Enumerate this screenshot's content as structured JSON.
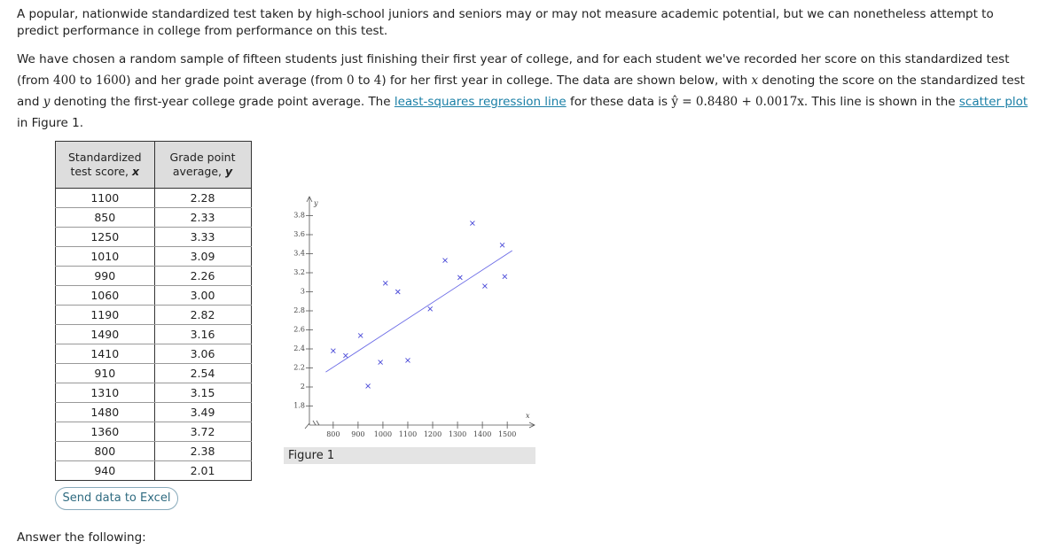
{
  "intro": "A popular, nationwide standardized test taken by high-school juniors and seniors may or may not measure academic potential, but we can nonetheless attempt to predict performance in college from performance on this test.",
  "paragraph": [
    {
      "kind": "text",
      "text": "We have chosen a random sample of fifteen students just finishing their first year of college, and for each student we've recorded her score on this standardized test (from "
    },
    {
      "kind": "math",
      "text": "400"
    },
    {
      "kind": "text",
      "text": " to "
    },
    {
      "kind": "math",
      "text": "1600"
    },
    {
      "kind": "text",
      "text": ") and her grade point average (from "
    },
    {
      "kind": "math",
      "text": "0"
    },
    {
      "kind": "text",
      "text": " to "
    },
    {
      "kind": "math",
      "text": "4"
    },
    {
      "kind": "text",
      "text": ") for her first year in college. The data are shown below, with "
    },
    {
      "kind": "var",
      "text": "x"
    },
    {
      "kind": "text",
      "text": " denoting the score on the standardized test and "
    },
    {
      "kind": "var",
      "text": "y"
    },
    {
      "kind": "text",
      "text": " denoting the first-year college grade point average. The "
    },
    {
      "kind": "link",
      "text": "least-squares regression line"
    },
    {
      "kind": "text",
      "text": " for these data is "
    },
    {
      "kind": "math",
      "text": "ŷ = 0.8480 + 0.0017x"
    },
    {
      "kind": "text",
      "text": ". This line is shown in the "
    },
    {
      "kind": "link",
      "text": "scatter plot"
    },
    {
      "kind": "text",
      "text": " in Figure 1."
    }
  ],
  "table": {
    "headers": [
      {
        "text": "Standardized test score,",
        "var": "x"
      },
      {
        "text": "Grade point average,",
        "var": "y"
      }
    ],
    "rows": [
      [
        "1100",
        "2.28"
      ],
      [
        "850",
        "2.33"
      ],
      [
        "1250",
        "3.33"
      ],
      [
        "1010",
        "3.09"
      ],
      [
        "990",
        "2.26"
      ],
      [
        "1060",
        "3.00"
      ],
      [
        "1190",
        "2.82"
      ],
      [
        "1490",
        "3.16"
      ],
      [
        "1410",
        "3.06"
      ],
      [
        "910",
        "2.54"
      ],
      [
        "1310",
        "3.15"
      ],
      [
        "1480",
        "3.49"
      ],
      [
        "1360",
        "3.72"
      ],
      [
        "800",
        "2.38"
      ],
      [
        "940",
        "2.01"
      ]
    ]
  },
  "button": "Send data to Excel",
  "figure": {
    "caption": "Figure 1",
    "chart_data": {
      "type": "scatter",
      "x_label": "x",
      "y_label": "y",
      "color": "#4a4ad8",
      "line_color": "#6a6ae6",
      "x": [
        1100,
        850,
        1250,
        1010,
        990,
        1060,
        1190,
        1490,
        1410,
        910,
        1310,
        1480,
        1360,
        800,
        940
      ],
      "y": [
        2.28,
        2.33,
        3.33,
        3.09,
        2.26,
        3.0,
        2.82,
        3.16,
        3.06,
        2.54,
        3.15,
        3.49,
        3.72,
        2.38,
        2.01
      ],
      "regression": {
        "intercept": 0.848,
        "slope": 0.0017
      },
      "xlim": [
        690,
        1610
      ],
      "ylim": [
        1.6,
        4.0
      ],
      "xticks": [
        800,
        900,
        1000,
        1100,
        1200,
        1300,
        1400,
        1500
      ],
      "yticks": [
        1.8,
        2,
        2.2,
        2.4,
        2.6,
        2.8,
        3,
        3.2,
        3.4,
        3.6,
        3.8
      ]
    }
  },
  "footer": "Answer the following:"
}
